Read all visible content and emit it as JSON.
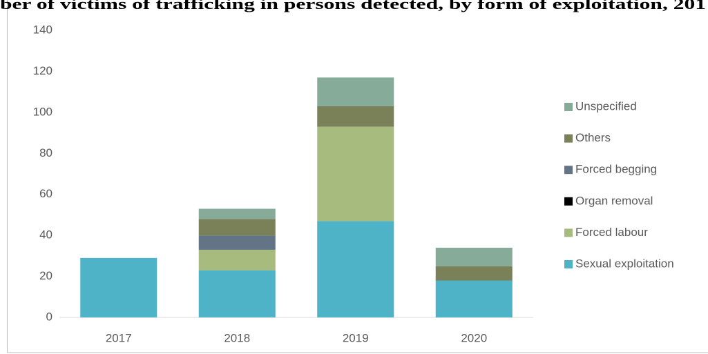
{
  "chart_data": {
    "type": "stacked_bar",
    "title": "ber of victims of trafficking in persons detected, by form of exploitation, 201",
    "categories": [
      "2017",
      "2018",
      "2019",
      "2020"
    ],
    "series": [
      {
        "name": "Sexual exploitation",
        "color": "#4fb3c8",
        "values": [
          29,
          23,
          47,
          18
        ]
      },
      {
        "name": "Forced labour",
        "color": "#a8bb7e",
        "values": [
          0,
          10,
          46,
          0
        ]
      },
      {
        "name": "Organ removal",
        "color": "#000000",
        "values": [
          0,
          0,
          0,
          0
        ]
      },
      {
        "name": "Forced begging",
        "color": "#637487",
        "values": [
          0,
          7,
          0,
          0
        ]
      },
      {
        "name": "Others",
        "color": "#7a8158",
        "values": [
          0,
          8,
          10,
          7
        ]
      },
      {
        "name": "Unspecified",
        "color": "#86ab99",
        "values": [
          0,
          5,
          14,
          9
        ]
      }
    ],
    "ylim": [
      0,
      140
    ],
    "yticks": [
      0,
      20,
      40,
      60,
      80,
      100,
      120,
      140
    ],
    "legend": "right"
  }
}
